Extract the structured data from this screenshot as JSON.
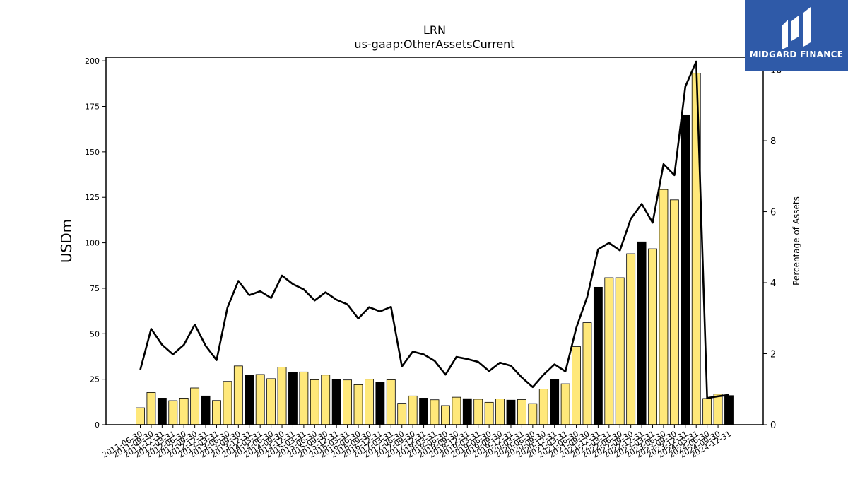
{
  "logo": {
    "text": "MIDGARD FINANCE"
  },
  "chart_data": {
    "type": "bar",
    "title": "LRN",
    "subtitle": "us-gaap:OtherAssetsCurrent",
    "ylabel": "USDm",
    "y2label": "Percentage of Assets",
    "ylim": [
      0,
      202
    ],
    "y2lim": [
      0,
      10.35
    ],
    "yticks": [
      0,
      25,
      50,
      75,
      100,
      125,
      150,
      175,
      200
    ],
    "y2ticks": [
      0,
      2,
      4,
      6,
      8,
      10
    ],
    "grid": false,
    "colors": {
      "bar_default": "#ffe87a",
      "bar_highlight": "#000000",
      "line": "#000000"
    },
    "categories": [
      "2011-06-30",
      "2011-09-30",
      "2011-12-31",
      "2012-03-31",
      "2012-06-30",
      "2012-09-30",
      "2012-12-31",
      "2013-03-31",
      "2013-06-30",
      "2013-09-30",
      "2013-12-31",
      "2014-03-31",
      "2014-06-30",
      "2014-09-30",
      "2014-12-31",
      "2015-03-31",
      "2015-06-30",
      "2015-09-30",
      "2015-12-31",
      "2016-03-31",
      "2016-06-30",
      "2016-09-30",
      "2016-12-31",
      "2017-03-31",
      "2017-06-30",
      "2017-09-30",
      "2017-12-31",
      "2018-03-31",
      "2018-06-30",
      "2018-09-30",
      "2018-12-31",
      "2019-03-31",
      "2019-06-30",
      "2019-09-30",
      "2019-12-31",
      "2020-03-31",
      "2020-06-30",
      "2020-09-30",
      "2020-12-31",
      "2021-03-31",
      "2021-06-30",
      "2021-09-30",
      "2021-12-31",
      "2022-03-31",
      "2022-06-30",
      "2022-09-30",
      "2022-12-31",
      "2023-03-31",
      "2023-06-30",
      "2023-09-30",
      "2023-12-31",
      "2024-03-31",
      "2024-06-30",
      "2024-09-30",
      "2024-12-31"
    ],
    "series": [
      {
        "values": [
          9.3,
          17.7,
          14.6,
          13.2,
          14.6,
          20.2,
          15.8,
          13.3,
          23.8,
          32.3,
          27.2,
          27.6,
          25.3,
          31.7,
          28.9,
          29.0,
          24.7,
          27.3,
          25.0,
          24.6,
          22.0,
          25.0,
          23.3,
          24.7,
          11.8,
          15.8,
          14.6,
          13.7,
          10.5,
          15.1,
          14.3,
          14.0,
          12.3,
          14.2,
          13.5,
          13.8,
          11.6,
          19.6,
          25.0,
          22.5,
          42.9,
          56.1,
          75.6,
          80.8,
          80.8,
          94.0,
          100.5,
          96.7,
          129.3,
          123.6,
          170.0,
          193.2,
          14.4,
          16.8,
          16.0
        ],
        "highlight": [
          false,
          false,
          true,
          false,
          false,
          false,
          true,
          false,
          false,
          false,
          true,
          false,
          false,
          false,
          true,
          false,
          false,
          false,
          true,
          false,
          false,
          false,
          true,
          false,
          false,
          false,
          true,
          false,
          false,
          false,
          true,
          false,
          false,
          false,
          true,
          false,
          false,
          false,
          true,
          false,
          false,
          false,
          true,
          false,
          false,
          false,
          true,
          false,
          false,
          false,
          true,
          false,
          false,
          false,
          true
        ]
      },
      {
        "values": [
          1.55,
          2.7,
          2.25,
          1.98,
          2.25,
          2.82,
          2.22,
          1.82,
          3.3,
          4.05,
          3.65,
          3.76,
          3.57,
          4.2,
          3.96,
          3.81,
          3.5,
          3.73,
          3.52,
          3.39,
          2.99,
          3.31,
          3.19,
          3.32,
          1.64,
          2.06,
          1.98,
          1.8,
          1.41,
          1.91,
          1.85,
          1.77,
          1.51,
          1.75,
          1.66,
          1.33,
          1.06,
          1.41,
          1.7,
          1.5,
          2.73,
          3.6,
          4.94,
          5.12,
          4.91,
          5.8,
          6.22,
          5.69,
          7.34,
          7.03,
          9.52,
          10.23,
          0.75,
          0.8,
          0.84
        ]
      }
    ]
  }
}
